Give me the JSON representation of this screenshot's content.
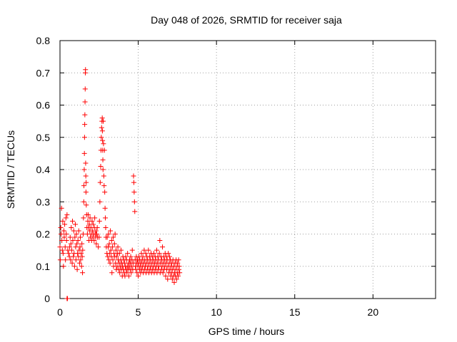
{
  "chart_data": {
    "type": "scatter",
    "title": "Day 048 of 2026, SRMTID for receiver saja",
    "xlabel": "GPS time / hours",
    "ylabel": "SRMTID / TECUs",
    "xlim": [
      0,
      24
    ],
    "ylim": [
      0,
      0.8
    ],
    "x_ticks": [
      0,
      5,
      10,
      15,
      20
    ],
    "x_tick_labels": [
      "0",
      "5",
      "10",
      "15",
      "20"
    ],
    "y_ticks": [
      0,
      0.1,
      0.2,
      0.3,
      0.4,
      0.5,
      0.6,
      0.7,
      0.8
    ],
    "y_tick_labels": [
      "0",
      "0.1",
      "0.2",
      "0.3",
      "0.4",
      "0.5",
      "0.6",
      "0.7",
      "0.8"
    ],
    "grid": true,
    "marker": "+",
    "marker_color": "#ff0000",
    "series": [
      {
        "name": "SRMTID",
        "points": [
          [
            0.45,
            0.0
          ],
          [
            0.48,
            0.0
          ],
          [
            0.0,
            0.16
          ],
          [
            0.02,
            0.12
          ],
          [
            0.05,
            0.22
          ],
          [
            0.07,
            0.2
          ],
          [
            0.1,
            0.28
          ],
          [
            0.12,
            0.18
          ],
          [
            0.15,
            0.15
          ],
          [
            0.18,
            0.24
          ],
          [
            0.2,
            0.14
          ],
          [
            0.22,
            0.1
          ],
          [
            0.25,
            0.21
          ],
          [
            0.27,
            0.19
          ],
          [
            0.3,
            0.23
          ],
          [
            0.33,
            0.16
          ],
          [
            0.35,
            0.12
          ],
          [
            0.38,
            0.25
          ],
          [
            0.4,
            0.2
          ],
          [
            0.42,
            0.18
          ],
          [
            0.45,
            0.26
          ],
          [
            0.5,
            0.15
          ],
          [
            0.55,
            0.14
          ],
          [
            0.6,
            0.13
          ],
          [
            0.62,
            0.16
          ],
          [
            0.65,
            0.19
          ],
          [
            0.68,
            0.12
          ],
          [
            0.7,
            0.17
          ],
          [
            0.72,
            0.22
          ],
          [
            0.75,
            0.15
          ],
          [
            0.78,
            0.11
          ],
          [
            0.8,
            0.24
          ],
          [
            0.82,
            0.18
          ],
          [
            0.85,
            0.13
          ],
          [
            0.88,
            0.21
          ],
          [
            0.9,
            0.14
          ],
          [
            0.93,
            0.1
          ],
          [
            0.95,
            0.19
          ],
          [
            0.98,
            0.23
          ],
          [
            1.0,
            0.16
          ],
          [
            1.02,
            0.12
          ],
          [
            1.05,
            0.2
          ],
          [
            1.08,
            0.17
          ],
          [
            1.1,
            0.09
          ],
          [
            1.12,
            0.14
          ],
          [
            1.15,
            0.18
          ],
          [
            1.18,
            0.13
          ],
          [
            1.2,
            0.21
          ],
          [
            1.22,
            0.15
          ],
          [
            1.25,
            0.11
          ],
          [
            1.28,
            0.16
          ],
          [
            1.3,
            0.19
          ],
          [
            1.32,
            0.12
          ],
          [
            1.35,
            0.14
          ],
          [
            1.38,
            0.1
          ],
          [
            1.4,
            0.17
          ],
          [
            1.42,
            0.13
          ],
          [
            1.44,
            0.08
          ],
          [
            1.45,
            0.15
          ],
          [
            1.48,
            0.2
          ],
          [
            1.5,
            0.25
          ],
          [
            1.52,
            0.3
          ],
          [
            1.53,
            0.35
          ],
          [
            1.55,
            0.4
          ],
          [
            1.56,
            0.45
          ],
          [
            1.57,
            0.5
          ],
          [
            1.58,
            0.54
          ],
          [
            1.59,
            0.57
          ],
          [
            1.6,
            0.61
          ],
          [
            1.61,
            0.65
          ],
          [
            1.62,
            0.7
          ],
          [
            1.63,
            0.71
          ],
          [
            1.64,
            0.42
          ],
          [
            1.65,
            0.38
          ],
          [
            1.66,
            0.33
          ],
          [
            1.67,
            0.36
          ],
          [
            1.68,
            0.29
          ],
          [
            1.7,
            0.26
          ],
          [
            1.72,
            0.22
          ],
          [
            1.75,
            0.2
          ],
          [
            1.78,
            0.24
          ],
          [
            1.8,
            0.26
          ],
          [
            1.82,
            0.22
          ],
          [
            1.85,
            0.18
          ],
          [
            1.88,
            0.23
          ],
          [
            1.9,
            0.21
          ],
          [
            1.92,
            0.25
          ],
          [
            1.95,
            0.19
          ],
          [
            1.98,
            0.22
          ],
          [
            2.0,
            0.2
          ],
          [
            2.02,
            0.18
          ],
          [
            2.05,
            0.24
          ],
          [
            2.08,
            0.21
          ],
          [
            2.1,
            0.19
          ],
          [
            2.12,
            0.23
          ],
          [
            2.15,
            0.2
          ],
          [
            2.18,
            0.18
          ],
          [
            2.2,
            0.22
          ],
          [
            2.22,
            0.25
          ],
          [
            2.25,
            0.2
          ],
          [
            2.28,
            0.19
          ],
          [
            2.3,
            0.21
          ],
          [
            2.32,
            0.17
          ],
          [
            2.35,
            0.2
          ],
          [
            2.38,
            0.22
          ],
          [
            2.4,
            0.19
          ],
          [
            2.45,
            0.16
          ],
          [
            2.5,
            0.19
          ],
          [
            2.52,
            0.24
          ],
          [
            2.55,
            0.3
          ],
          [
            2.57,
            0.36
          ],
          [
            2.6,
            0.41
          ],
          [
            2.62,
            0.46
          ],
          [
            2.64,
            0.5
          ],
          [
            2.66,
            0.53
          ],
          [
            2.68,
            0.55
          ],
          [
            2.7,
            0.56
          ],
          [
            2.71,
            0.52
          ],
          [
            2.72,
            0.49
          ],
          [
            2.73,
            0.46
          ],
          [
            2.74,
            0.43
          ],
          [
            2.75,
            0.4
          ],
          [
            2.76,
            0.55
          ],
          [
            2.78,
            0.48
          ],
          [
            2.8,
            0.38
          ],
          [
            2.82,
            0.35
          ],
          [
            2.84,
            0.46
          ],
          [
            2.86,
            0.33
          ],
          [
            2.88,
            0.28
          ],
          [
            2.9,
            0.25
          ],
          [
            2.92,
            0.22
          ],
          [
            2.94,
            0.19
          ],
          [
            2.96,
            0.16
          ],
          [
            3.0,
            0.14
          ],
          [
            3.02,
            0.19
          ],
          [
            3.05,
            0.13
          ],
          [
            3.08,
            0.16
          ],
          [
            3.1,
            0.2
          ],
          [
            3.12,
            0.12
          ],
          [
            3.15,
            0.17
          ],
          [
            3.18,
            0.14
          ],
          [
            3.2,
            0.11
          ],
          [
            3.22,
            0.21
          ],
          [
            3.25,
            0.15
          ],
          [
            3.28,
            0.13
          ],
          [
            3.3,
            0.18
          ],
          [
            3.32,
            0.08
          ],
          [
            3.35,
            0.16
          ],
          [
            3.38,
            0.12
          ],
          [
            3.4,
            0.19
          ],
          [
            3.42,
            0.1
          ],
          [
            3.45,
            0.14
          ],
          [
            3.48,
            0.17
          ],
          [
            3.5,
            0.13
          ],
          [
            3.52,
            0.2
          ],
          [
            3.55,
            0.11
          ],
          [
            3.58,
            0.15
          ],
          [
            3.6,
            0.09
          ],
          [
            3.62,
            0.13
          ],
          [
            3.65,
            0.1
          ],
          [
            3.68,
            0.14
          ],
          [
            3.7,
            0.16
          ],
          [
            3.72,
            0.12
          ],
          [
            3.75,
            0.09
          ],
          [
            3.78,
            0.11
          ],
          [
            3.8,
            0.14
          ],
          [
            3.82,
            0.08
          ],
          [
            3.85,
            0.1
          ],
          [
            3.88,
            0.12
          ],
          [
            3.9,
            0.15
          ],
          [
            3.92,
            0.09
          ],
          [
            3.95,
            0.11
          ],
          [
            3.98,
            0.07
          ],
          [
            4.0,
            0.1
          ],
          [
            4.02,
            0.13
          ],
          [
            4.05,
            0.09
          ],
          [
            4.08,
            0.12
          ],
          [
            4.1,
            0.08
          ],
          [
            4.12,
            0.11
          ],
          [
            4.15,
            0.07
          ],
          [
            4.18,
            0.1
          ],
          [
            4.2,
            0.13
          ],
          [
            4.22,
            0.09
          ],
          [
            4.25,
            0.12
          ],
          [
            4.28,
            0.08
          ],
          [
            4.3,
            0.1
          ],
          [
            4.32,
            0.14
          ],
          [
            4.35,
            0.09
          ],
          [
            4.38,
            0.11
          ],
          [
            4.4,
            0.07
          ],
          [
            4.42,
            0.1
          ],
          [
            4.45,
            0.12
          ],
          [
            4.48,
            0.09
          ],
          [
            4.5,
            0.11
          ],
          [
            4.52,
            0.13
          ],
          [
            4.55,
            0.08
          ],
          [
            4.58,
            0.1
          ],
          [
            4.6,
            0.12
          ],
          [
            4.62,
            0.15
          ],
          [
            4.65,
            0.09
          ],
          [
            4.68,
            0.11
          ],
          [
            4.7,
            0.38
          ],
          [
            4.72,
            0.36
          ],
          [
            4.74,
            0.33
          ],
          [
            4.76,
            0.3
          ],
          [
            4.78,
            0.27
          ],
          [
            4.8,
            0.12
          ],
          [
            4.82,
            0.1
          ],
          [
            4.85,
            0.09
          ],
          [
            4.88,
            0.13
          ],
          [
            4.9,
            0.11
          ],
          [
            4.92,
            0.08
          ],
          [
            4.95,
            0.12
          ],
          [
            4.98,
            0.1
          ],
          [
            5.0,
            0.07
          ],
          [
            5.02,
            0.11
          ],
          [
            5.05,
            0.13
          ],
          [
            5.08,
            0.09
          ],
          [
            5.1,
            0.12
          ],
          [
            5.12,
            0.1
          ],
          [
            5.15,
            0.08
          ],
          [
            5.18,
            0.11
          ],
          [
            5.2,
            0.14
          ],
          [
            5.22,
            0.09
          ],
          [
            5.25,
            0.12
          ],
          [
            5.28,
            0.1
          ],
          [
            5.3,
            0.13
          ],
          [
            5.32,
            0.08
          ],
          [
            5.35,
            0.11
          ],
          [
            5.38,
            0.15
          ],
          [
            5.4,
            0.09
          ],
          [
            5.42,
            0.12
          ],
          [
            5.45,
            0.1
          ],
          [
            5.48,
            0.14
          ],
          [
            5.5,
            0.08
          ],
          [
            5.52,
            0.11
          ],
          [
            5.55,
            0.13
          ],
          [
            5.58,
            0.09
          ],
          [
            5.6,
            0.12
          ],
          [
            5.62,
            0.1
          ],
          [
            5.65,
            0.15
          ],
          [
            5.68,
            0.08
          ],
          [
            5.7,
            0.11
          ],
          [
            5.72,
            0.13
          ],
          [
            5.75,
            0.09
          ],
          [
            5.78,
            0.12
          ],
          [
            5.8,
            0.1
          ],
          [
            5.82,
            0.14
          ],
          [
            5.85,
            0.08
          ],
          [
            5.88,
            0.11
          ],
          [
            5.9,
            0.13
          ],
          [
            5.92,
            0.09
          ],
          [
            5.95,
            0.12
          ],
          [
            5.98,
            0.1
          ],
          [
            6.0,
            0.14
          ],
          [
            6.02,
            0.08
          ],
          [
            6.05,
            0.11
          ],
          [
            6.08,
            0.13
          ],
          [
            6.1,
            0.09
          ],
          [
            6.12,
            0.12
          ],
          [
            6.15,
            0.1
          ],
          [
            6.18,
            0.15
          ],
          [
            6.2,
            0.08
          ],
          [
            6.22,
            0.11
          ],
          [
            6.25,
            0.13
          ],
          [
            6.28,
            0.09
          ],
          [
            6.3,
            0.12
          ],
          [
            6.32,
            0.1
          ],
          [
            6.35,
            0.14
          ],
          [
            6.38,
            0.18
          ],
          [
            6.4,
            0.08
          ],
          [
            6.42,
            0.11
          ],
          [
            6.45,
            0.13
          ],
          [
            6.48,
            0.09
          ],
          [
            6.5,
            0.12
          ],
          [
            6.52,
            0.1
          ],
          [
            6.55,
            0.16
          ],
          [
            6.58,
            0.08
          ],
          [
            6.6,
            0.11
          ],
          [
            6.62,
            0.13
          ],
          [
            6.65,
            0.09
          ],
          [
            6.68,
            0.12
          ],
          [
            6.7,
            0.1
          ],
          [
            6.72,
            0.14
          ],
          [
            6.75,
            0.07
          ],
          [
            6.78,
            0.11
          ],
          [
            6.8,
            0.13
          ],
          [
            6.82,
            0.09
          ],
          [
            6.85,
            0.12
          ],
          [
            6.88,
            0.06
          ],
          [
            6.9,
            0.1
          ],
          [
            6.92,
            0.14
          ],
          [
            6.95,
            0.08
          ],
          [
            6.98,
            0.11
          ],
          [
            7.0,
            0.13
          ],
          [
            7.02,
            0.09
          ],
          [
            7.05,
            0.12
          ],
          [
            7.08,
            0.07
          ],
          [
            7.1,
            0.1
          ],
          [
            7.12,
            0.08
          ],
          [
            7.15,
            0.11
          ],
          [
            7.18,
            0.06
          ],
          [
            7.2,
            0.09
          ],
          [
            7.22,
            0.12
          ],
          [
            7.25,
            0.07
          ],
          [
            7.28,
            0.1
          ],
          [
            7.3,
            0.05
          ],
          [
            7.32,
            0.08
          ],
          [
            7.35,
            0.11
          ],
          [
            7.38,
            0.07
          ],
          [
            7.4,
            0.09
          ],
          [
            7.42,
            0.12
          ],
          [
            7.45,
            0.06
          ],
          [
            7.48,
            0.1
          ],
          [
            7.5,
            0.08
          ],
          [
            7.52,
            0.11
          ],
          [
            7.55,
            0.07
          ],
          [
            7.58,
            0.12
          ],
          [
            7.6,
            0.09
          ],
          [
            7.62,
            0.1
          ],
          [
            7.65,
            0.08
          ]
        ]
      }
    ]
  }
}
